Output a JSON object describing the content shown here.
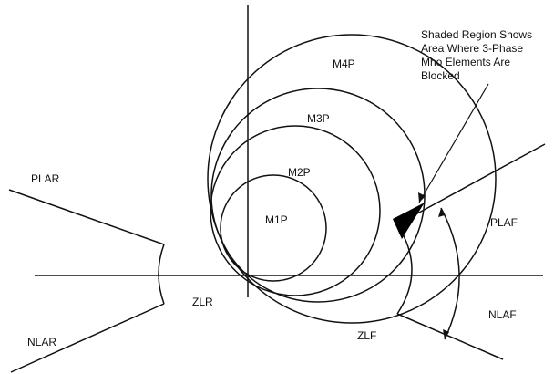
{
  "labels": {
    "m4p": "M4P",
    "m3p": "M3P",
    "m2p": "M2P",
    "m1p": "M1P",
    "plar": "PLAR",
    "nlar": "NLAR",
    "zlr": "ZLR",
    "plaf": "PLAF",
    "nlaf": "NLAF",
    "zlf": "ZLF"
  },
  "annotation": {
    "lines": [
      "Shaded Region Shows",
      "Area Where 3-Phase",
      "Mho Elements Are",
      "Blocked"
    ]
  },
  "colors": {
    "stroke": "#111111",
    "shade": "#000000"
  }
}
